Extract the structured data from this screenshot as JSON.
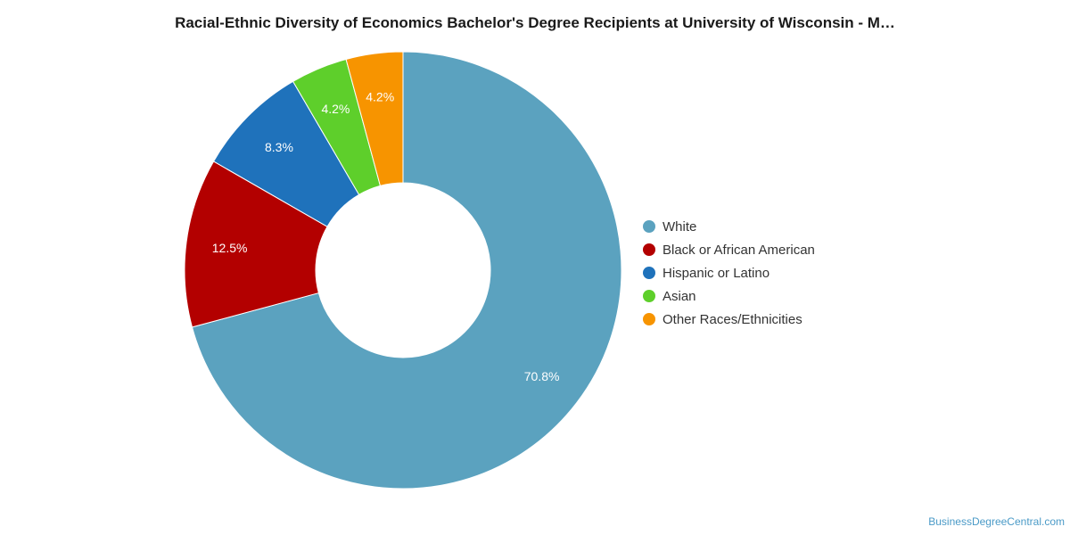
{
  "chart_data": {
    "type": "pie",
    "title": "Racial-Ethnic Diversity of Economics Bachelor's Degree Recipients at University of Wisconsin - M…",
    "categories": [
      "White",
      "Black or African American",
      "Hispanic or Latino",
      "Asian",
      "Other Races/Ethnicities"
    ],
    "values": [
      70.8,
      12.5,
      8.3,
      4.2,
      4.2
    ],
    "labels": [
      "70.8%",
      "12.5%",
      "8.3%",
      "4.2%",
      "4.2%"
    ],
    "colors": [
      "#5ba2bf",
      "#b30000",
      "#1f72bb",
      "#5ecf2b",
      "#f79400"
    ],
    "donut": true,
    "legend_position": "right"
  },
  "source_credit": "BusinessDegreeCentral.com"
}
